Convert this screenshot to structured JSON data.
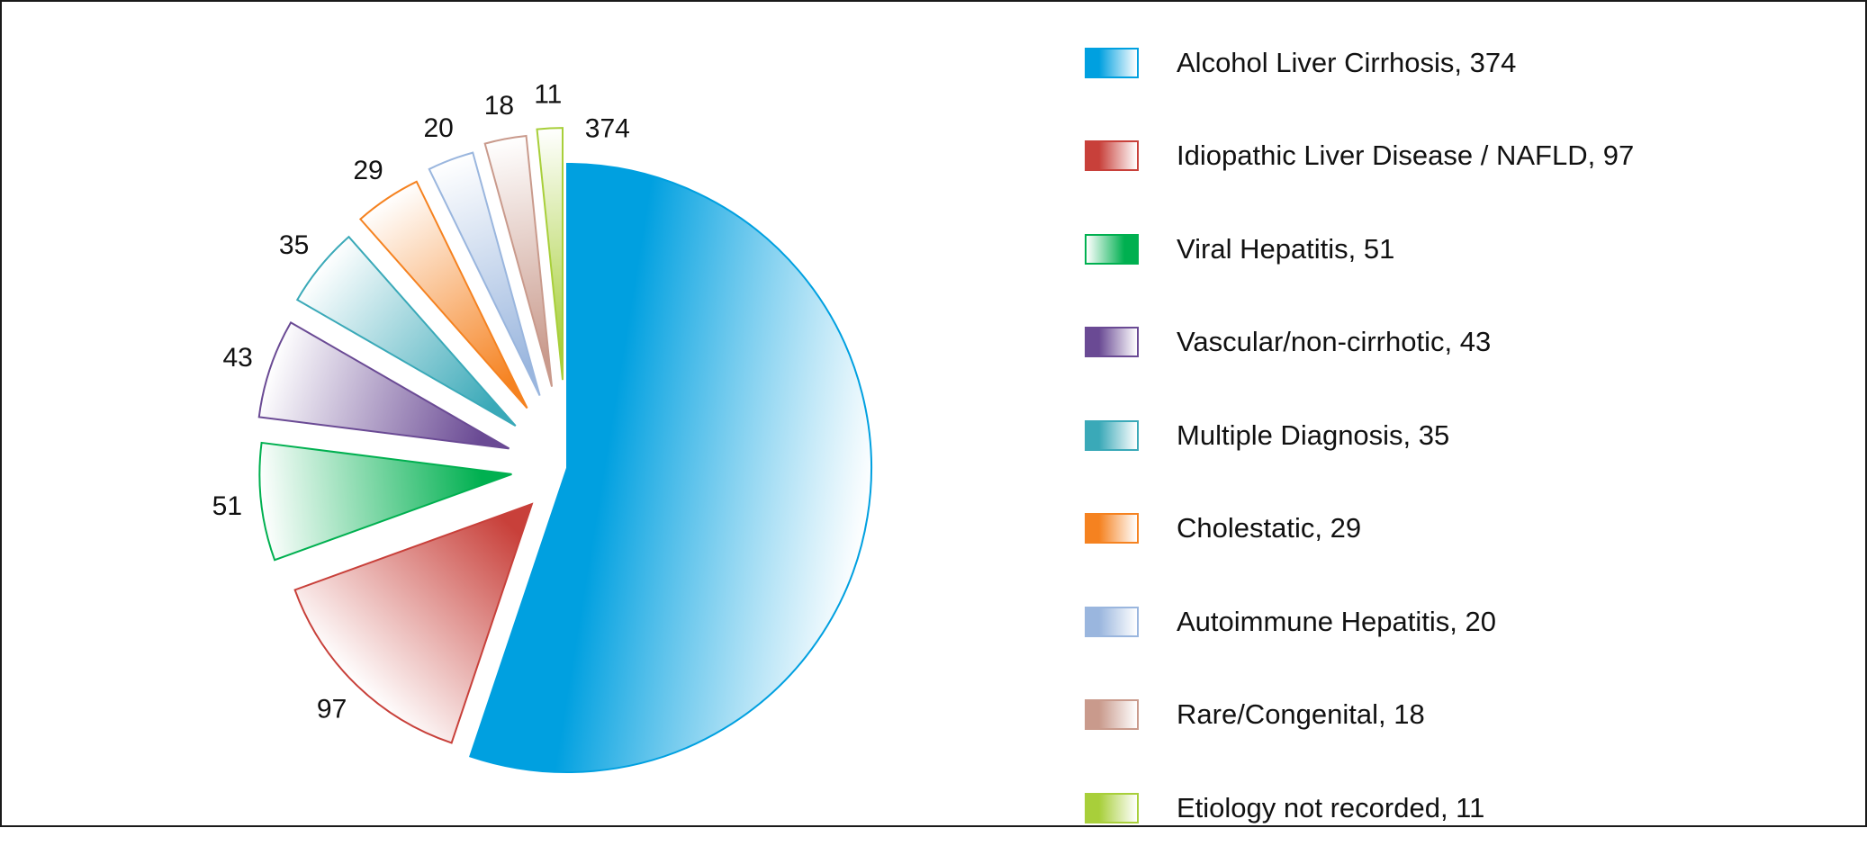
{
  "chart_data": {
    "type": "pie",
    "exploded": true,
    "categories": [
      "Alcohol Liver Cirrhosis",
      "Idiopathic Liver Disease / NAFLD",
      "Viral Hepatitis",
      "Vascular/non-cirrhotic",
      "Multiple Diagnosis",
      "Cholestatic",
      "Autoimmune Hepatitis",
      "Rare/Congenital",
      "Etiology not recorded"
    ],
    "values": [
      374,
      97,
      51,
      43,
      35,
      29,
      20,
      18,
      11
    ],
    "data_labels": [
      "374",
      "97",
      "51",
      "43",
      "35",
      "29",
      "20",
      "18",
      "11"
    ],
    "colors": [
      "#00a0e0",
      "#c8403a",
      "#00b050",
      "#6a4a94",
      "#3aa9b8",
      "#f58220",
      "#9ab6de",
      "#c99a8c",
      "#a8cf3a"
    ],
    "legend": {
      "position": "right",
      "entries": [
        "Alcohol Liver Cirrhosis, 374",
        "Idiopathic Liver Disease / NAFLD, 97",
        "Viral Hepatitis, 51",
        "Vascular/non-cirrhotic, 43",
        "Multiple Diagnosis, 35",
        "Cholestatic, 29",
        "Autoimmune Hepatitis, 20",
        "Rare/Congenital, 18",
        "Etiology not recorded, 11"
      ]
    }
  }
}
